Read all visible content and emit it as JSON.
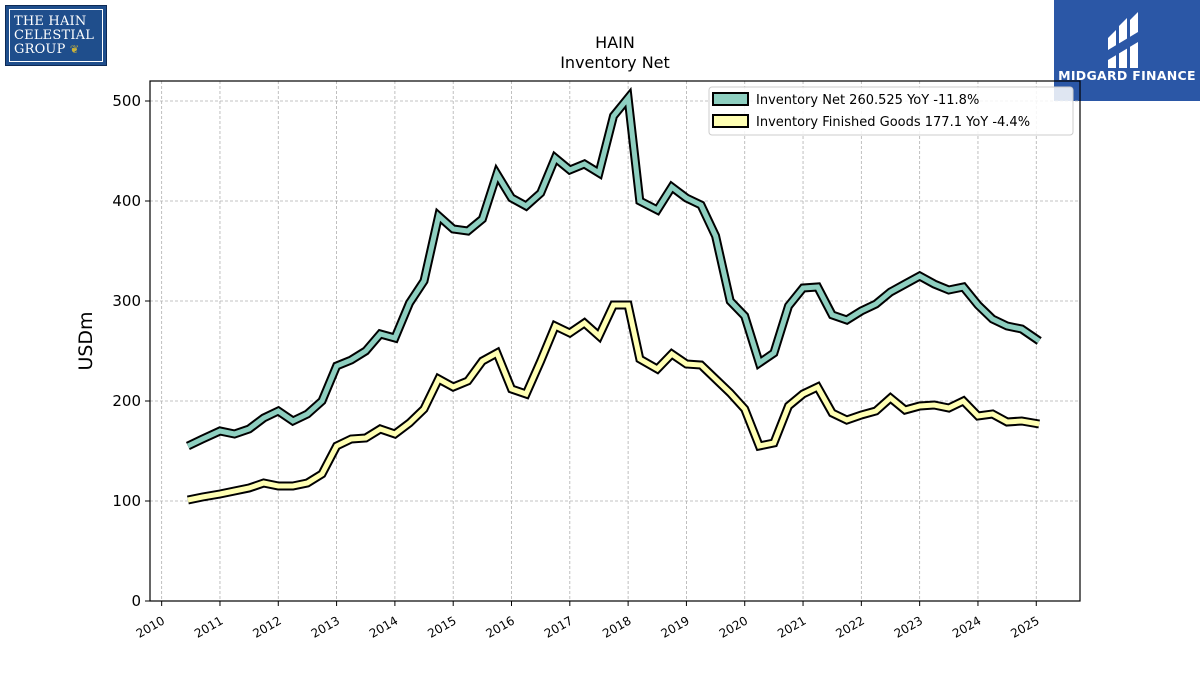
{
  "logos": {
    "left_line1": "THE HAIN",
    "left_line2": "CELESTIAL",
    "left_line3": "GROUP",
    "right_brand": "MIDGARD FINANCE"
  },
  "chart_data": {
    "type": "line",
    "title": "HAIN",
    "subtitle": "Inventory Net",
    "ylabel": "USDm",
    "ylim": [
      0,
      520
    ],
    "xlim": [
      2009.8,
      2025.75
    ],
    "yticks": [
      0,
      100,
      200,
      300,
      400,
      500
    ],
    "xticks": [
      "2010",
      "2011",
      "2012",
      "2013",
      "2014",
      "2015",
      "2016",
      "2017",
      "2018",
      "2019",
      "2020",
      "2021",
      "2022",
      "2023",
      "2024",
      "2025"
    ],
    "grid": true,
    "legend_position": "top-right",
    "colors": {
      "inventory_net": "#8ecfc0",
      "finished_goods": "#ffffb3",
      "outline": "#000000"
    },
    "legend": [
      {
        "key": "net",
        "label": "Inventory Net  260.525 YoY -11.8%"
      },
      {
        "key": "fg",
        "label": "Inventory Finished Goods  177.1 YoY -4.4%"
      }
    ],
    "series": [
      {
        "key": "net",
        "name": "Inventory Net",
        "points": [
          [
            2010.45,
            155
          ],
          [
            2010.7,
            162
          ],
          [
            2011.0,
            170
          ],
          [
            2011.25,
            167
          ],
          [
            2011.5,
            172
          ],
          [
            2011.75,
            183
          ],
          [
            2012.0,
            190
          ],
          [
            2012.25,
            180
          ],
          [
            2012.5,
            187
          ],
          [
            2012.75,
            200
          ],
          [
            2013.0,
            235
          ],
          [
            2013.25,
            241
          ],
          [
            2013.5,
            250
          ],
          [
            2013.75,
            267
          ],
          [
            2014.0,
            263
          ],
          [
            2014.25,
            298
          ],
          [
            2014.5,
            320
          ],
          [
            2014.75,
            385
          ],
          [
            2015.0,
            372
          ],
          [
            2015.25,
            370
          ],
          [
            2015.5,
            382
          ],
          [
            2015.75,
            427
          ],
          [
            2016.0,
            403
          ],
          [
            2016.25,
            395
          ],
          [
            2016.5,
            408
          ],
          [
            2016.75,
            443
          ],
          [
            2017.0,
            431
          ],
          [
            2017.25,
            437
          ],
          [
            2017.5,
            428
          ],
          [
            2017.75,
            485
          ],
          [
            2018.0,
            503
          ],
          [
            2018.2,
            400
          ],
          [
            2018.5,
            391
          ],
          [
            2018.75,
            414
          ],
          [
            2019.0,
            403
          ],
          [
            2019.25,
            396
          ],
          [
            2019.5,
            365
          ],
          [
            2019.75,
            300
          ],
          [
            2020.0,
            285
          ],
          [
            2020.25,
            238
          ],
          [
            2020.5,
            248
          ],
          [
            2020.75,
            295
          ],
          [
            2021.0,
            313
          ],
          [
            2021.25,
            314
          ],
          [
            2021.5,
            286
          ],
          [
            2021.75,
            281
          ],
          [
            2022.0,
            290
          ],
          [
            2022.25,
            297
          ],
          [
            2022.5,
            309
          ],
          [
            2022.75,
            317
          ],
          [
            2023.0,
            325
          ],
          [
            2023.25,
            317
          ],
          [
            2023.5,
            311
          ],
          [
            2023.75,
            314
          ],
          [
            2024.0,
            296
          ],
          [
            2024.25,
            282
          ],
          [
            2024.5,
            275
          ],
          [
            2024.75,
            272
          ],
          [
            2025.05,
            260
          ]
        ]
      },
      {
        "key": "fg",
        "name": "Inventory Finished Goods",
        "points": [
          [
            2010.45,
            101
          ],
          [
            2010.7,
            104
          ],
          [
            2011.0,
            107
          ],
          [
            2011.25,
            110
          ],
          [
            2011.5,
            113
          ],
          [
            2011.75,
            118
          ],
          [
            2012.0,
            115
          ],
          [
            2012.25,
            115
          ],
          [
            2012.5,
            118
          ],
          [
            2012.75,
            127
          ],
          [
            2013.0,
            155
          ],
          [
            2013.25,
            162
          ],
          [
            2013.5,
            163
          ],
          [
            2013.75,
            172
          ],
          [
            2014.0,
            167
          ],
          [
            2014.25,
            178
          ],
          [
            2014.5,
            192
          ],
          [
            2014.75,
            222
          ],
          [
            2015.0,
            214
          ],
          [
            2015.25,
            220
          ],
          [
            2015.5,
            240
          ],
          [
            2015.75,
            248
          ],
          [
            2016.0,
            212
          ],
          [
            2016.25,
            207
          ],
          [
            2016.5,
            240
          ],
          [
            2016.75,
            275
          ],
          [
            2017.0,
            268
          ],
          [
            2017.25,
            278
          ],
          [
            2017.5,
            265
          ],
          [
            2017.75,
            296
          ],
          [
            2018.0,
            296
          ],
          [
            2018.2,
            242
          ],
          [
            2018.5,
            232
          ],
          [
            2018.75,
            247
          ],
          [
            2019.0,
            237
          ],
          [
            2019.25,
            236
          ],
          [
            2019.5,
            222
          ],
          [
            2019.75,
            208
          ],
          [
            2020.0,
            192
          ],
          [
            2020.25,
            155
          ],
          [
            2020.5,
            158
          ],
          [
            2020.75,
            195
          ],
          [
            2021.0,
            207
          ],
          [
            2021.25,
            214
          ],
          [
            2021.5,
            188
          ],
          [
            2021.75,
            181
          ],
          [
            2022.0,
            186
          ],
          [
            2022.25,
            190
          ],
          [
            2022.5,
            203
          ],
          [
            2022.75,
            191
          ],
          [
            2023.0,
            195
          ],
          [
            2023.25,
            196
          ],
          [
            2023.5,
            193
          ],
          [
            2023.75,
            200
          ],
          [
            2024.0,
            185
          ],
          [
            2024.25,
            187
          ],
          [
            2024.5,
            179
          ],
          [
            2024.75,
            180
          ],
          [
            2025.05,
            177
          ]
        ]
      }
    ]
  }
}
